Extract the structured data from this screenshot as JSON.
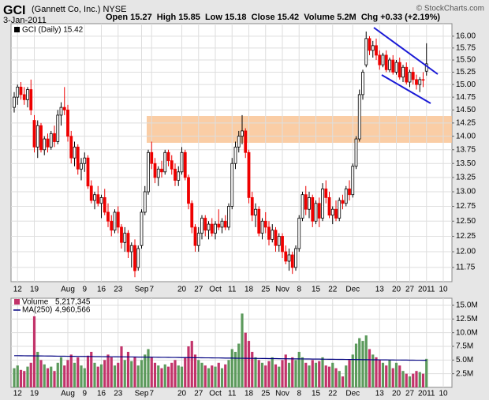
{
  "header": {
    "symbol": "GCI",
    "name": "(Gannett Co, Inc.) NYSE",
    "date": "3-Jan-2011",
    "quote": "Open 15.27  High 15.85  Low 15.18  Close 15.42  Volume 5.2M  Chg +0.33 (+2.19%)",
    "credit": "© StockCharts.com"
  },
  "chart_data": [
    {
      "type": "candlestick",
      "legend": "GCI (Daily) 15.42",
      "log": true,
      "grid": true,
      "up_color": "#000000",
      "down_color": "#ee0000",
      "categories": [
        null,
        "12",
        null,
        null,
        null,
        null,
        "19",
        null,
        null,
        null,
        null,
        null,
        null,
        null,
        null,
        null,
        "Aug",
        null,
        null,
        null,
        null,
        "9",
        null,
        null,
        null,
        null,
        "16",
        null,
        null,
        null,
        null,
        "23",
        null,
        null,
        null,
        null,
        null,
        null,
        "Sep",
        null,
        null,
        "7",
        null,
        null,
        null,
        null,
        null,
        null,
        null,
        null,
        "20",
        null,
        null,
        null,
        null,
        "27",
        null,
        null,
        null,
        null,
        "Oct",
        null,
        null,
        null,
        null,
        "11",
        null,
        null,
        null,
        null,
        "18",
        null,
        null,
        null,
        null,
        "25",
        null,
        null,
        null,
        null,
        "Nov",
        null,
        null,
        null,
        null,
        "8",
        null,
        null,
        null,
        null,
        "15",
        null,
        null,
        null,
        null,
        "22",
        null,
        null,
        null,
        null,
        null,
        "Dec",
        null,
        null,
        null,
        null,
        null,
        null,
        null,
        "13",
        null,
        null,
        null,
        null,
        "20",
        null,
        null,
        null,
        "27",
        null,
        null,
        null,
        null,
        "2011",
        null,
        null,
        null,
        null,
        "10"
      ],
      "open": [
        14.55,
        14.75,
        14.95,
        14.8,
        14.7,
        14.9,
        14.3,
        13.8,
        14.2,
        13.75,
        13.95,
        13.8,
        14.05,
        13.9,
        14.4,
        14.55,
        14.5,
        14.0,
        13.6,
        13.8,
        13.4,
        13.5,
        13.6,
        13.1,
        12.85,
        12.95,
        12.8,
        12.9,
        12.65,
        12.5,
        12.35,
        12.65,
        12.4,
        12.15,
        12.3,
        12.0,
        12.1,
        11.75,
        12.1,
        12.65,
        13.0,
        13.7,
        13.5,
        13.25,
        13.4,
        13.35,
        13.7,
        13.55,
        13.4,
        13.2,
        13.35,
        13.7,
        13.25,
        12.8,
        12.4,
        12.1,
        12.3,
        12.55,
        12.35,
        12.45,
        12.3,
        12.45,
        12.4,
        12.5,
        12.4,
        12.75,
        13.5,
        13.8,
        14.0,
        14.1,
        13.7,
        12.9,
        12.6,
        12.7,
        12.3,
        12.5,
        12.4,
        12.2,
        12.35,
        12.1,
        12.25,
        12.0,
        11.85,
        11.95,
        11.75,
        12.05,
        12.55,
        12.95,
        12.7,
        12.9,
        12.5,
        12.8,
        12.55,
        13.05,
        12.9,
        12.6,
        12.7,
        12.55,
        12.85,
        12.8,
        13.05,
        12.95,
        13.45,
        13.95,
        14.8,
        15.4,
        15.95,
        15.7,
        15.8,
        15.6,
        15.4,
        15.6,
        15.3,
        15.5,
        15.25,
        15.45,
        15.15,
        15.35,
        15.05,
        15.25,
        15.1,
        15.0,
        15.1,
        15.27,
        null,
        null,
        null,
        null,
        null
      ],
      "high": [
        14.85,
        15.0,
        15.05,
        14.95,
        14.95,
        15.1,
        14.4,
        14.3,
        14.25,
        14.0,
        14.05,
        14.1,
        14.2,
        14.5,
        14.65,
        14.95,
        14.6,
        14.1,
        13.9,
        13.85,
        13.6,
        13.7,
        13.65,
        13.2,
        13.0,
        13.1,
        12.95,
        13.05,
        12.8,
        12.6,
        12.7,
        12.75,
        12.45,
        12.4,
        12.35,
        12.15,
        12.2,
        12.1,
        12.7,
        13.1,
        13.75,
        13.9,
        13.6,
        13.45,
        13.55,
        13.75,
        13.75,
        13.65,
        13.5,
        13.45,
        13.8,
        13.75,
        13.3,
        12.85,
        12.45,
        12.4,
        12.6,
        12.6,
        12.5,
        12.55,
        12.5,
        12.7,
        12.55,
        12.6,
        12.8,
        13.6,
        13.9,
        14.1,
        14.4,
        14.15,
        13.75,
        13.0,
        12.8,
        12.75,
        12.55,
        12.65,
        12.5,
        12.45,
        12.4,
        12.3,
        12.3,
        12.1,
        12.05,
        12.0,
        12.1,
        12.6,
        13.0,
        13.1,
        13.0,
        12.95,
        12.85,
        12.9,
        13.15,
        13.2,
        13.0,
        12.75,
        12.85,
        12.9,
        12.95,
        13.1,
        13.2,
        13.5,
        14.0,
        14.9,
        15.3,
        16.1,
        16.0,
        15.9,
        15.95,
        15.7,
        15.65,
        15.7,
        15.55,
        15.6,
        15.5,
        15.55,
        15.4,
        15.45,
        15.3,
        15.35,
        15.2,
        15.15,
        15.25,
        15.85,
        null,
        null,
        null,
        null,
        null
      ],
      "low": [
        14.45,
        14.6,
        14.7,
        14.6,
        14.55,
        14.4,
        13.7,
        13.6,
        13.7,
        13.65,
        13.7,
        13.75,
        13.8,
        13.85,
        14.2,
        14.4,
        13.9,
        13.5,
        13.45,
        13.3,
        13.2,
        13.35,
        13.05,
        12.8,
        12.7,
        12.75,
        12.55,
        12.6,
        12.4,
        12.25,
        12.3,
        12.3,
        12.05,
        12.0,
        11.9,
        11.75,
        11.6,
        11.7,
        12.05,
        12.6,
        12.95,
        13.4,
        13.15,
        13.1,
        13.25,
        13.3,
        13.45,
        13.3,
        13.1,
        13.1,
        13.3,
        13.2,
        12.7,
        12.3,
        12.0,
        12.0,
        12.2,
        12.25,
        12.2,
        12.25,
        12.2,
        12.35,
        12.3,
        12.35,
        12.35,
        12.7,
        13.4,
        13.7,
        13.85,
        13.6,
        12.8,
        12.5,
        12.4,
        12.25,
        12.2,
        12.3,
        12.1,
        12.15,
        12.0,
        12.0,
        11.9,
        11.8,
        11.7,
        11.65,
        11.7,
        12.0,
        12.5,
        12.6,
        12.55,
        12.4,
        12.45,
        12.4,
        12.5,
        12.8,
        12.55,
        12.45,
        12.5,
        12.5,
        12.7,
        12.75,
        12.85,
        12.9,
        13.4,
        13.9,
        14.7,
        15.35,
        15.6,
        15.55,
        15.5,
        15.3,
        15.35,
        15.25,
        15.25,
        15.2,
        15.2,
        15.1,
        15.05,
        15.0,
        14.95,
        15.0,
        14.9,
        14.85,
        14.95,
        15.18,
        null,
        null,
        null,
        null,
        null
      ],
      "close": [
        14.75,
        14.95,
        14.8,
        14.7,
        14.9,
        14.5,
        13.8,
        14.2,
        13.75,
        13.95,
        13.8,
        14.05,
        13.9,
        14.4,
        14.55,
        14.5,
        14.0,
        13.6,
        13.8,
        13.4,
        13.5,
        13.6,
        13.1,
        12.85,
        12.95,
        12.8,
        12.9,
        12.65,
        12.5,
        12.35,
        12.65,
        12.4,
        12.15,
        12.3,
        12.0,
        12.1,
        11.7,
        12.05,
        12.65,
        13.0,
        13.7,
        13.5,
        13.25,
        13.4,
        13.35,
        13.7,
        13.55,
        13.4,
        13.2,
        13.35,
        13.7,
        13.25,
        12.8,
        12.4,
        12.1,
        12.3,
        12.55,
        12.35,
        12.45,
        12.3,
        12.45,
        12.4,
        12.5,
        12.4,
        12.75,
        13.5,
        13.8,
        14.0,
        14.1,
        13.7,
        12.9,
        12.6,
        12.7,
        12.3,
        12.5,
        12.4,
        12.2,
        12.35,
        12.1,
        12.25,
        12.0,
        11.85,
        11.95,
        11.75,
        12.05,
        12.55,
        12.95,
        12.7,
        12.9,
        12.5,
        12.8,
        12.55,
        13.05,
        12.9,
        12.6,
        12.7,
        12.55,
        12.85,
        12.8,
        13.05,
        12.95,
        13.45,
        13.95,
        14.8,
        15.25,
        15.95,
        15.7,
        15.8,
        15.6,
        15.4,
        15.6,
        15.3,
        15.5,
        15.25,
        15.45,
        15.15,
        15.35,
        15.05,
        15.25,
        15.1,
        15.0,
        15.1,
        15.09,
        15.42,
        null,
        null,
        null,
        null,
        null
      ],
      "ylim": [
        11.53,
        16.27
      ],
      "yticks": [
        11.75,
        {
          "value": 12,
          "label": "12.00"
        },
        12.25,
        {
          "value": 12.5,
          "label": "12.50"
        },
        12.75,
        {
          "value": 13,
          "label": "13.00"
        },
        13.25,
        {
          "value": 13.5,
          "label": "13.50"
        },
        13.75,
        {
          "value": 14,
          "label": "14.00"
        },
        14.25,
        {
          "value": 14.5,
          "label": "14.50"
        },
        14.75,
        {
          "value": 15,
          "label": "15.00"
        },
        15.25,
        {
          "value": 15.5,
          "label": "15.50"
        },
        15.75,
        {
          "value": 16,
          "label": "16.00"
        }
      ]
    },
    {
      "type": "bar",
      "grid": true,
      "up_color": "#5c9a5c",
      "down_color": "#c2336a",
      "series": [
        {
          "name": "Volume",
          "last_label": "5,217,345",
          "color": "#c2336a",
          "values": [
            3.5,
            4.0,
            3.2,
            3.0,
            3.8,
            4.5,
            13.0,
            6.5,
            5.0,
            4.2,
            3.5,
            3.8,
            3.0,
            4.5,
            5.5,
            4.0,
            5.0,
            6.0,
            4.5,
            5.5,
            4.0,
            3.5,
            5.8,
            6.5,
            4.5,
            3.8,
            4.2,
            5.0,
            6.0,
            5.5,
            4.0,
            4.5,
            7.5,
            5.0,
            6.5,
            4.8,
            5.5,
            4.0,
            5.0,
            6.0,
            7.0,
            5.5,
            4.5,
            4.0,
            3.5,
            4.2,
            3.8,
            4.5,
            5.0,
            4.0,
            3.8,
            5.5,
            7.5,
            8.5,
            6.0,
            5.0,
            4.5,
            4.0,
            3.5,
            4.0,
            3.8,
            4.5,
            3.5,
            4.2,
            5.0,
            7.0,
            6.5,
            8.0,
            13.5,
            10.0,
            8.5,
            6.5,
            5.5,
            5.0,
            4.5,
            4.0,
            4.8,
            5.5,
            4.2,
            3.8,
            5.0,
            6.0,
            4.5,
            5.5,
            5.0,
            6.5,
            5.5,
            4.5,
            4.0,
            5.0,
            4.5,
            4.8,
            5.5,
            4.0,
            3.8,
            4.5,
            3.5,
            3.0,
            2.0,
            4.0,
            5.0,
            6.0,
            8.0,
            9.0,
            8.5,
            9.5,
            7.0,
            6.0,
            5.5,
            5.0,
            4.5,
            4.0,
            5.0,
            3.5,
            4.5,
            4.0,
            3.0,
            2.5,
            2.0,
            2.5,
            3.0,
            2.8,
            2.5,
            5.217345,
            null,
            null,
            null,
            null,
            null
          ]
        },
        {
          "name": "MA(250)",
          "last_label": "4,960,566",
          "color": "#000080",
          "values": [
            5.8,
            5.8,
            5.79,
            5.78,
            5.77,
            5.77,
            5.76,
            5.75,
            5.75,
            5.74,
            5.73,
            5.73,
            5.72,
            5.71,
            5.7,
            5.7,
            5.69,
            5.68,
            5.68,
            5.67,
            5.66,
            5.66,
            5.65,
            5.64,
            5.63,
            5.63,
            5.62,
            5.61,
            5.61,
            5.6,
            5.59,
            5.59,
            5.58,
            5.57,
            5.56,
            5.56,
            5.55,
            5.54,
            5.54,
            5.53,
            5.52,
            5.52,
            5.51,
            5.5,
            5.49,
            5.49,
            5.48,
            5.47,
            5.47,
            5.46,
            5.45,
            5.45,
            5.44,
            5.43,
            5.42,
            5.42,
            5.41,
            5.4,
            5.4,
            5.39,
            5.38,
            5.38,
            5.37,
            5.36,
            5.35,
            5.35,
            5.34,
            5.33,
            5.33,
            5.32,
            5.31,
            5.31,
            5.3,
            5.29,
            5.28,
            5.28,
            5.27,
            5.26,
            5.26,
            5.25,
            5.24,
            5.24,
            5.23,
            5.22,
            5.21,
            5.21,
            5.2,
            5.19,
            5.19,
            5.18,
            5.17,
            5.17,
            5.16,
            5.15,
            5.14,
            5.14,
            5.13,
            5.12,
            5.12,
            5.11,
            5.1,
            5.1,
            5.09,
            5.08,
            5.07,
            5.07,
            5.06,
            5.05,
            5.05,
            5.04,
            5.03,
            5.03,
            5.02,
            5.01,
            5.0,
            5.0,
            4.99,
            4.99,
            4.98,
            4.98,
            4.97,
            4.97,
            4.96,
            4.960566,
            null,
            null,
            null,
            null,
            null
          ]
        }
      ],
      "ylim": [
        0,
        16.3
      ],
      "yticks": [
        {
          "value": 2.5,
          "label": "2.5M"
        },
        {
          "value": 5,
          "label": "5.0M"
        },
        {
          "value": 7.5,
          "label": "7.5M"
        },
        {
          "value": 10,
          "label": "10.0M"
        },
        {
          "value": 12.5,
          "label": "12.5M"
        },
        {
          "value": 15,
          "label": "15.0M"
        }
      ]
    }
  ]
}
